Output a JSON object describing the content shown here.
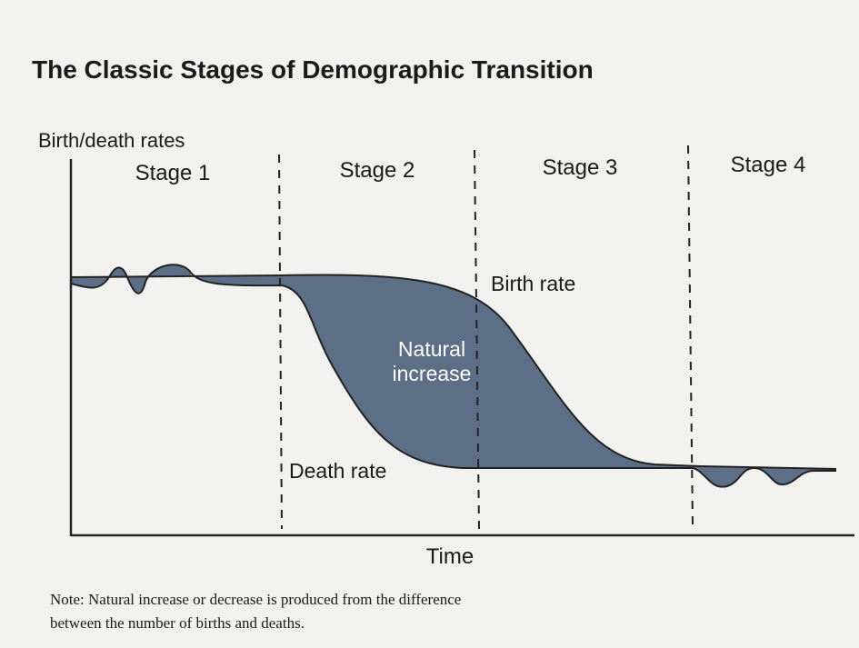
{
  "title": "The Classic Stages of Demographic Transition",
  "y_axis_label": "Birth/death rates",
  "x_axis_label": "Time",
  "stages": [
    "Stage 1",
    "Stage 2",
    "Stage 3",
    "Stage 4"
  ],
  "curves": {
    "birth": "Birth rate",
    "death": "Death rate"
  },
  "region_label": [
    "Natural",
    "increase"
  ],
  "note": [
    "Note: Natural increase or decrease is produced from the difference",
    "between the number of births and deaths."
  ]
}
